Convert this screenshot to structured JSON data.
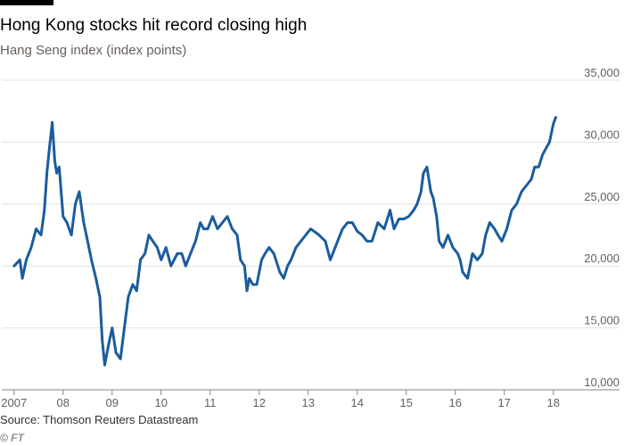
{
  "header": {
    "title": "Hong Kong stocks hit record closing high",
    "subtitle": "Hang Seng index (index points)"
  },
  "footer": {
    "source": "Source: Thomson Reuters Datastream",
    "credit": "© FT"
  },
  "colors": {
    "line": "#1a5c9e",
    "grid": "#e6e2dd",
    "baseline": "#8a8580"
  },
  "chart_data": {
    "type": "line",
    "title": "Hong Kong stocks hit record closing high",
    "subtitle": "Hang Seng index (index points)",
    "xlabel": "",
    "ylabel": "",
    "xlim": [
      2006.75,
      2018.35
    ],
    "ylim": [
      10000,
      35000
    ],
    "yticks": [
      10000,
      15000,
      20000,
      25000,
      30000,
      35000
    ],
    "ytick_labels": [
      "10,000",
      "15,000",
      "20,000",
      "25,000",
      "30,000",
      "35,000"
    ],
    "xticks": [
      2007,
      2008,
      2009,
      2010,
      2011,
      2012,
      2013,
      2014,
      2015,
      2016,
      2017,
      2018
    ],
    "xtick_labels": [
      "2007",
      "08",
      "09",
      "10",
      "11",
      "12",
      "13",
      "14",
      "15",
      "16",
      "17",
      "18"
    ],
    "grid": true,
    "legend": "none",
    "series": [
      {
        "x": [
          2007.0,
          2007.12,
          2007.17,
          2007.25,
          2007.35,
          2007.45,
          2007.55,
          2007.62,
          2007.67,
          2007.72,
          2007.78,
          2007.83,
          2007.87,
          2007.92,
          2008.0,
          2008.08,
          2008.17,
          2008.25,
          2008.33,
          2008.42,
          2008.5,
          2008.58,
          2008.67,
          2008.75,
          2008.8,
          2008.85,
          2008.92,
          2009.0,
          2009.08,
          2009.17,
          2009.25,
          2009.33,
          2009.42,
          2009.5,
          2009.58,
          2009.67,
          2009.75,
          2009.83,
          2009.92,
          2010.0,
          2010.1,
          2010.2,
          2010.33,
          2010.42,
          2010.5,
          2010.6,
          2010.7,
          2010.8,
          2010.87,
          2010.95,
          2011.05,
          2011.15,
          2011.25,
          2011.35,
          2011.45,
          2011.55,
          2011.62,
          2011.7,
          2011.75,
          2011.8,
          2011.87,
          2011.95,
          2012.05,
          2012.12,
          2012.2,
          2012.3,
          2012.42,
          2012.5,
          2012.58,
          2012.65,
          2012.75,
          2012.85,
          2012.95,
          2013.05,
          2013.12,
          2013.22,
          2013.35,
          2013.45,
          2013.5,
          2013.6,
          2013.7,
          2013.8,
          2013.9,
          2014.0,
          2014.1,
          2014.2,
          2014.3,
          2014.42,
          2014.55,
          2014.67,
          2014.75,
          2014.85,
          2014.95,
          2015.05,
          2015.15,
          2015.22,
          2015.3,
          2015.35,
          2015.42,
          2015.5,
          2015.55,
          2015.62,
          2015.67,
          2015.75,
          2015.85,
          2015.95,
          2016.05,
          2016.1,
          2016.15,
          2016.25,
          2016.35,
          2016.45,
          2016.55,
          2016.62,
          2016.7,
          2016.8,
          2016.87,
          2016.95,
          2017.05,
          2017.15,
          2017.25,
          2017.35,
          2017.45,
          2017.55,
          2017.62,
          2017.7,
          2017.78,
          2017.85,
          2017.92,
          2018.0,
          2018.05
        ],
        "values": [
          20000,
          20500,
          19000,
          20500,
          21500,
          23000,
          22500,
          24500,
          27500,
          29500,
          31600,
          28500,
          27500,
          28000,
          24000,
          23500,
          22500,
          25000,
          26000,
          23500,
          22000,
          20500,
          19000,
          17500,
          14000,
          12000,
          13500,
          15000,
          13000,
          12500,
          15000,
          17500,
          18500,
          18000,
          20500,
          21000,
          22500,
          22000,
          21500,
          20500,
          21500,
          20000,
          21000,
          21000,
          20000,
          21000,
          22000,
          23500,
          23000,
          23000,
          24000,
          23000,
          23500,
          24000,
          23000,
          22500,
          20500,
          20000,
          18000,
          19000,
          18500,
          18500,
          20500,
          21000,
          21500,
          21000,
          19500,
          19000,
          20000,
          20500,
          21500,
          22000,
          22500,
          23000,
          22800,
          22500,
          22000,
          20500,
          21000,
          22000,
          23000,
          23500,
          23500,
          22800,
          22500,
          22000,
          22000,
          23500,
          23000,
          24500,
          23000,
          23800,
          23800,
          24000,
          24500,
          25000,
          26000,
          27500,
          28000,
          26000,
          25500,
          24000,
          22000,
          21500,
          22500,
          21500,
          21000,
          20500,
          19500,
          19000,
          21000,
          20500,
          21000,
          22500,
          23500,
          23000,
          22500,
          22000,
          23000,
          24500,
          25000,
          26000,
          26500,
          27000,
          28000,
          28000,
          29000,
          29500,
          30000,
          31500,
          32000
        ]
      }
    ]
  }
}
